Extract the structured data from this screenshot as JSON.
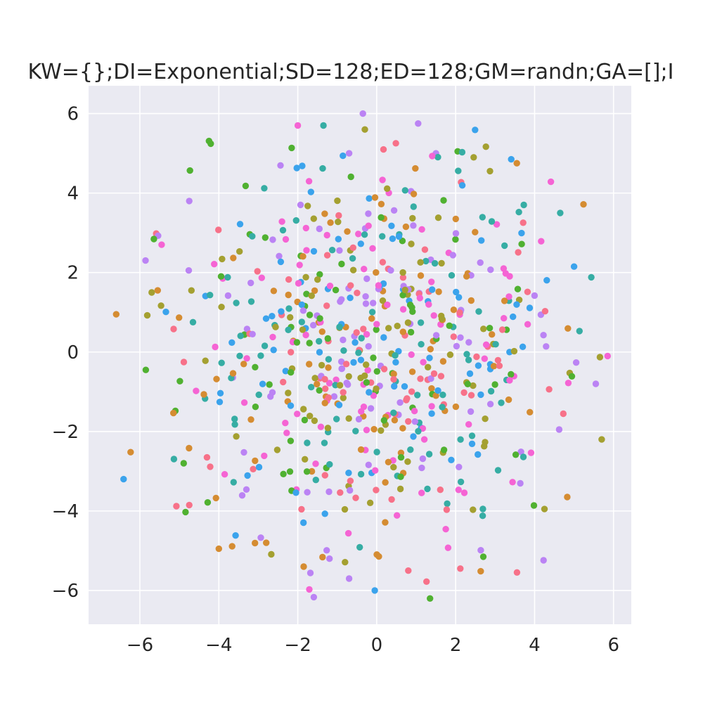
{
  "chart_data": {
    "type": "scatter",
    "title": "KW={};DI=Exponential;SD=128;ED=128;GM=randn;GA=[];I",
    "xlabel": "",
    "ylabel": "",
    "xlim": [
      -7.3,
      6.45
    ],
    "ylim": [
      -6.85,
      6.7
    ],
    "xticks": [
      -6,
      -4,
      -2,
      0,
      2,
      4,
      6
    ],
    "yticks": [
      -6,
      -4,
      -2,
      0,
      2,
      4,
      6
    ],
    "xtick_labels": [
      "−6",
      "−4",
      "−2",
      "0",
      "2",
      "4",
      "6"
    ],
    "ytick_labels": [
      "−6",
      "−4",
      "−2",
      "0",
      "2",
      "4",
      "6"
    ],
    "grid": true,
    "background": "#eaeaf2",
    "palette": [
      "#f77189",
      "#d58c32",
      "#a4a031",
      "#50b131",
      "#36ada4",
      "#3ba3ec",
      "#bb83f4",
      "#f564d4"
    ],
    "seed": 128,
    "n_points": 720,
    "distribution": "approximately isotropic 2D normal, std ≈ 2.4, centered near (0, 0), range ≈ [-6.6, 5.9] x, [-6.2, 6.0] y",
    "series": [
      {
        "values_sample": [
          {
            "x": -6.6,
            "y": 0.95
          },
          {
            "x": -5.85,
            "y": -0.45
          },
          {
            "x": -5.7,
            "y": 1.5
          },
          {
            "x": -5.55,
            "y": 1.55
          },
          {
            "x": -5.45,
            "y": 2.7
          },
          {
            "x": -5.1,
            "y": -1.48
          },
          {
            "x": -4.75,
            "y": 3.8
          },
          {
            "x": -4.75,
            "y": -3.85
          },
          {
            "x": -4.3,
            "y": -2.65
          },
          {
            "x": -4.0,
            "y": -4.95
          },
          {
            "x": -3.9,
            "y": 1.85
          },
          {
            "x": -2.8,
            "y": -4.8
          },
          {
            "x": -2.0,
            "y": 5.7
          },
          {
            "x": -1.35,
            "y": 5.7
          },
          {
            "x": -0.7,
            "y": 5.0
          },
          {
            "x": -0.35,
            "y": 6.0
          },
          {
            "x": -0.3,
            "y": 5.6
          },
          {
            "x": 1.05,
            "y": 5.75
          },
          {
            "x": 1.5,
            "y": 5.0
          },
          {
            "x": 2.05,
            "y": 5.05
          },
          {
            "x": 3.55,
            "y": 4.75
          },
          {
            "x": 4.65,
            "y": 3.5
          },
          {
            "x": 5.0,
            "y": 2.15
          },
          {
            "x": 5.55,
            "y": -0.8
          },
          {
            "x": 5.85,
            "y": -0.1
          },
          {
            "x": 5.7,
            "y": -2.2
          },
          {
            "x": 4.25,
            "y": -3.95
          },
          {
            "x": 2.7,
            "y": -5.15
          },
          {
            "x": 1.35,
            "y": -6.2
          },
          {
            "x": -0.05,
            "y": -6.0
          },
          {
            "x": -0.7,
            "y": -5.7
          },
          {
            "x": -1.85,
            "y": -5.4
          },
          {
            "x": 0.8,
            "y": -5.5
          },
          {
            "x": -0.4,
            "y": -0.2
          },
          {
            "x": 0.3,
            "y": 0.6
          },
          {
            "x": 0.1,
            "y": -0.35
          }
        ]
      }
    ]
  }
}
